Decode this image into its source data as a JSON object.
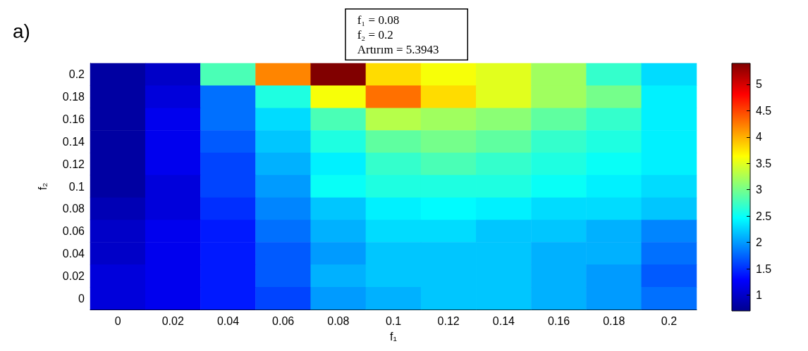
{
  "chart_data": {
    "type": "heatmap",
    "xlabel": "f₁",
    "ylabel": "f₂",
    "categories": [
      "0",
      "0.02",
      "0.04",
      "0.06",
      "0.08",
      "0.1",
      "0.12",
      "0.14",
      "0.16",
      "0.18",
      "0.2"
    ],
    "y_categories": [
      "0.2",
      "0.18",
      "0.16",
      "0.14",
      "0.12",
      "0.1",
      "0.08",
      "0.06",
      "0.04",
      "0.02",
      "0"
    ],
    "cells": [
      [
        0.8,
        1.0,
        2.8,
        4.2,
        5.3943,
        3.8,
        3.6,
        3.5,
        3.2,
        2.7,
        2.3
      ],
      [
        0.8,
        1.1,
        1.8,
        2.6,
        3.6,
        4.3,
        3.8,
        3.5,
        3.2,
        3.0,
        2.4
      ],
      [
        0.8,
        1.2,
        1.8,
        2.3,
        2.8,
        3.3,
        3.2,
        3.1,
        2.9,
        2.7,
        2.4
      ],
      [
        0.8,
        1.2,
        1.7,
        2.2,
        2.6,
        2.9,
        3.0,
        2.9,
        2.7,
        2.6,
        2.4
      ],
      [
        0.8,
        1.2,
        1.6,
        2.1,
        2.4,
        2.7,
        2.8,
        2.7,
        2.6,
        2.5,
        2.4
      ],
      [
        0.8,
        1.1,
        1.6,
        2.0,
        2.5,
        2.6,
        2.6,
        2.6,
        2.5,
        2.4,
        2.3
      ],
      [
        0.9,
        1.1,
        1.5,
        1.9,
        2.2,
        2.4,
        2.45,
        2.4,
        2.3,
        2.3,
        2.2
      ],
      [
        1.0,
        1.2,
        1.4,
        1.8,
        2.1,
        2.3,
        2.3,
        2.2,
        2.2,
        2.1,
        1.9
      ],
      [
        1.0,
        1.2,
        1.4,
        1.7,
        2.0,
        2.2,
        2.2,
        2.2,
        2.1,
        2.1,
        1.8
      ],
      [
        1.1,
        1.2,
        1.4,
        1.7,
        2.1,
        2.2,
        2.2,
        2.2,
        2.1,
        2.0,
        1.7
      ],
      [
        1.1,
        1.2,
        1.4,
        1.6,
        2.0,
        2.1,
        2.2,
        2.2,
        2.1,
        2.0,
        1.8
      ]
    ],
    "clim": [
      0.7,
      5.4
    ],
    "cticks": [
      1,
      1.5,
      2,
      2.5,
      3,
      3.5,
      4,
      4.5,
      5
    ],
    "annotations": [
      "a)",
      "f₁ = 0.08\nf₂ = 0.2\nArtırım = 5.3943"
    ]
  }
}
